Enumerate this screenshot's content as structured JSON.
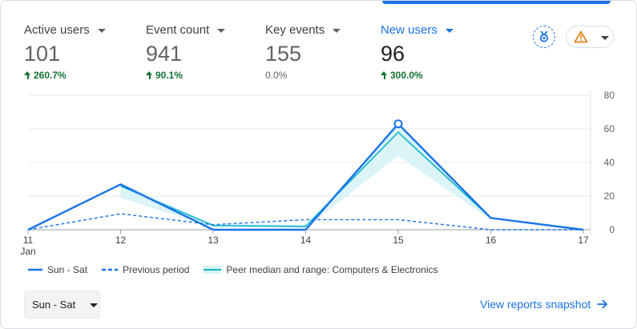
{
  "metrics": [
    {
      "label": "Active users",
      "value": "101",
      "change": "260.7%",
      "trend": "up",
      "selected": false
    },
    {
      "label": "Event count",
      "value": "941",
      "change": "90.1%",
      "trend": "up",
      "selected": false
    },
    {
      "label": "Key events",
      "value": "155",
      "change": "0.0%",
      "trend": "flat",
      "selected": false
    },
    {
      "label": "New users",
      "value": "96",
      "change": "300.0%",
      "trend": "up",
      "selected": true
    }
  ],
  "icons": {
    "insights": "insights-badge-icon",
    "alert": "warning-triangle-icon",
    "dropdown": "chevron-down-icon",
    "arrow": "arrow-right-icon"
  },
  "colors": {
    "accent": "#1a73e8",
    "peer": "#12b5cb",
    "peer_band": "#d7f3f7",
    "positive": "#137333",
    "warning": "#e37400"
  },
  "chart_data": {
    "type": "line",
    "x": [
      "11",
      "12",
      "13",
      "14",
      "15",
      "16",
      "17"
    ],
    "x_sublabel": "Jan",
    "ylim": [
      0,
      80
    ],
    "yticks": [
      "0",
      "20",
      "40",
      "60",
      "80"
    ],
    "grid": true,
    "series": [
      {
        "name": "Sun - Sat",
        "values": [
          0,
          27,
          0,
          0,
          63,
          7,
          0
        ],
        "style": "solid"
      },
      {
        "name": "Previous period",
        "values": [
          0,
          9.5,
          3,
          6,
          6,
          0,
          0
        ],
        "style": "dashed"
      },
      {
        "name": "Peer median and range: Computers & Electronics",
        "values": [
          null,
          26,
          2.5,
          2,
          58,
          7,
          null
        ],
        "range_low": [
          null,
          19,
          1.5,
          1,
          44,
          6,
          null
        ],
        "range_high": [
          null,
          28,
          3.5,
          3,
          62,
          8,
          null
        ],
        "style": "band"
      }
    ],
    "highlight_point": {
      "series": 0,
      "index": 4
    }
  },
  "controls": {
    "range_label": "Sun - Sat",
    "snapshot_link": "View reports snapshot"
  }
}
